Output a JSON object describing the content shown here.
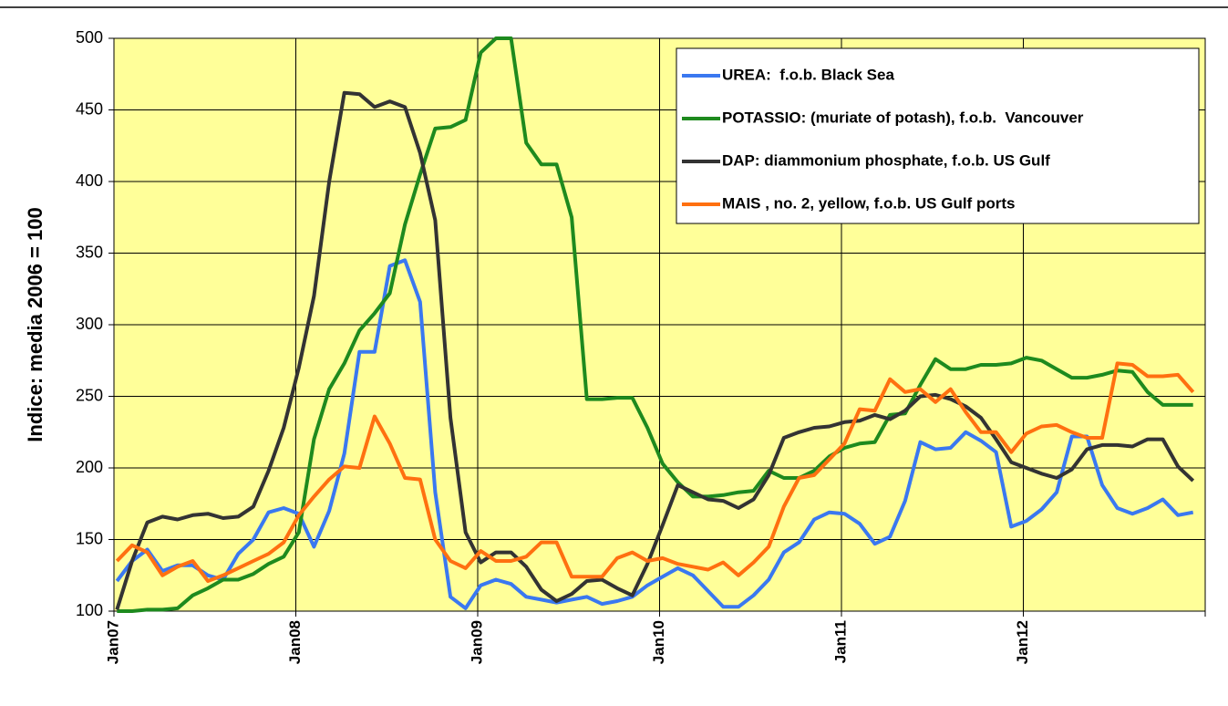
{
  "chart_data": {
    "type": "line",
    "ylabel": "Indice: media 2006 = 100",
    "categories": [
      "Jan07",
      null,
      null,
      null,
      null,
      null,
      null,
      null,
      null,
      null,
      null,
      null,
      "Jan08",
      null,
      null,
      null,
      null,
      null,
      null,
      null,
      null,
      null,
      null,
      null,
      "Jan09",
      null,
      null,
      null,
      null,
      null,
      null,
      null,
      null,
      null,
      null,
      null,
      "Jan10",
      null,
      null,
      null,
      null,
      null,
      null,
      null,
      null,
      null,
      null,
      null,
      "Jan11",
      null,
      null,
      null,
      null,
      null,
      null,
      null,
      null,
      null,
      null,
      null,
      "Jan12",
      null,
      null,
      null,
      null,
      null,
      null,
      null,
      null,
      null,
      null,
      null
    ],
    "ylim": [
      100,
      500
    ],
    "yticks": [
      100,
      150,
      200,
      250,
      300,
      350,
      400,
      450,
      500
    ],
    "grid": true,
    "legend": "upper right",
    "background": "#ffff99",
    "series": [
      {
        "name": "UREA:  f.o.b. Black Sea",
        "color": "#3a78f0",
        "values": [
          121,
          135,
          143,
          128,
          132,
          132,
          125,
          122,
          140,
          150,
          169,
          172,
          168,
          145,
          170,
          210,
          281,
          281,
          341,
          345,
          316,
          183,
          110,
          102,
          118,
          122,
          119,
          110,
          108,
          106,
          108,
          110,
          105,
          107,
          110,
          118,
          124,
          130,
          125,
          114,
          103,
          103,
          111,
          122,
          141,
          148,
          164,
          169,
          168,
          161,
          147,
          152,
          177,
          218,
          213,
          214,
          225,
          219,
          211,
          159,
          163,
          171,
          183,
          222,
          222,
          188,
          172,
          168,
          172,
          178,
          167,
          169
        ]
      },
      {
        "name": "POTASSIO: (muriate of potash), f.o.b.  Vancouver",
        "color": "#1e8a1e",
        "values": [
          100,
          100,
          101,
          101,
          102,
          111,
          116,
          122,
          122,
          126,
          133,
          138,
          155,
          220,
          255,
          273,
          296,
          308,
          322,
          370,
          405,
          437,
          438,
          443,
          490,
          500,
          500,
          427,
          412,
          412,
          375,
          248,
          248,
          249,
          249,
          228,
          203,
          190,
          180,
          180,
          181,
          183,
          184,
          198,
          193,
          193,
          198,
          208,
          214,
          217,
          218,
          237,
          238,
          258,
          276,
          269,
          269,
          272,
          272,
          273,
          277,
          275,
          269,
          263,
          263,
          265,
          268,
          267,
          253,
          244,
          244,
          244
        ]
      },
      {
        "name": "DAP: diammonium phosphate, f.o.b. US Gulf",
        "color": "#333333",
        "values": [
          101,
          135,
          162,
          166,
          164,
          167,
          168,
          165,
          166,
          173,
          198,
          228,
          270,
          320,
          400,
          462,
          461,
          452,
          456,
          452,
          420,
          373,
          235,
          155,
          134,
          141,
          141,
          131,
          115,
          107,
          112,
          121,
          122,
          116,
          111,
          133,
          160,
          188,
          183,
          178,
          177,
          172,
          178,
          195,
          221,
          225,
          228,
          229,
          232,
          233,
          237,
          234,
          240,
          250,
          251,
          248,
          243,
          235,
          220,
          204,
          200,
          196,
          193,
          199,
          213,
          216,
          216,
          215,
          220,
          220,
          201,
          191
        ]
      },
      {
        "name": "MAIS , no. 2, yellow, f.o.b. US Gulf ports",
        "color": "#ff7010",
        "values": [
          135,
          146,
          141,
          125,
          131,
          135,
          121,
          125,
          130,
          135,
          140,
          148,
          167,
          180,
          192,
          201,
          200,
          236,
          217,
          193,
          192,
          150,
          135,
          130,
          142,
          135,
          135,
          138,
          148,
          148,
          124,
          124,
          124,
          137,
          141,
          135,
          137,
          133,
          131,
          129,
          134,
          125,
          134,
          145,
          173,
          193,
          195,
          206,
          217,
          241,
          240,
          262,
          253,
          255,
          246,
          255,
          239,
          225,
          225,
          211,
          224,
          229,
          230,
          225,
          221,
          221,
          273,
          272,
          264,
          264,
          265,
          253
        ]
      }
    ]
  }
}
